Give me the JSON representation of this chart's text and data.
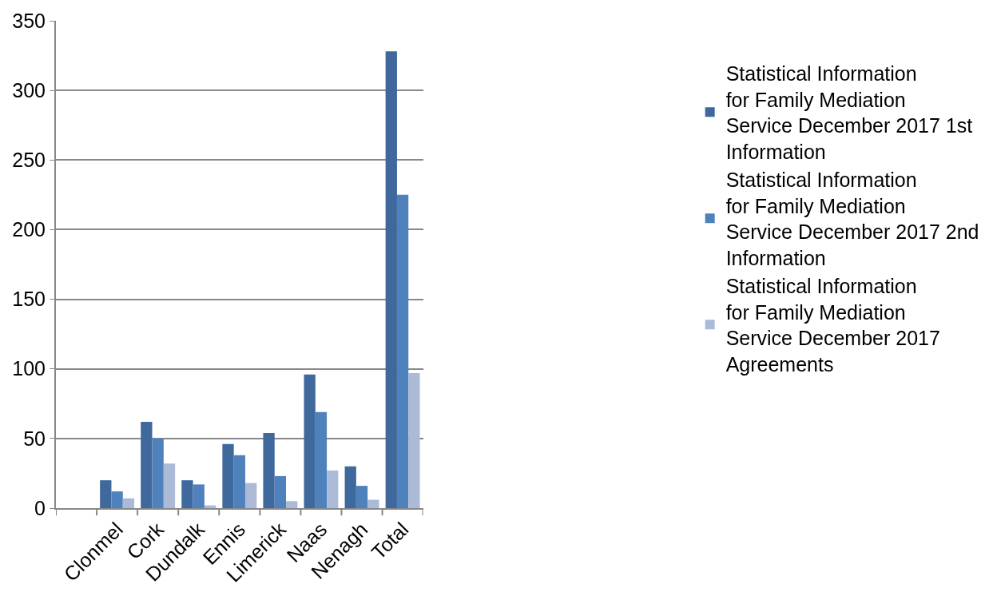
{
  "chart_data": {
    "type": "bar",
    "categories": [
      null,
      "Clonmel",
      "Cork",
      "Dundalk",
      "Ennis",
      "Limerick",
      "Naas",
      "Nenagh",
      "Total"
    ],
    "series": [
      {
        "name": "Statistical Information for Family Mediation Service December 2017 1st Information",
        "color": "#3f689c",
        "values": [
          null,
          20,
          62,
          20,
          46,
          54,
          96,
          30,
          328
        ]
      },
      {
        "name": "Statistical Information for Family Mediation Service December 2017 2nd Information",
        "color": "#4f81bd",
        "values": [
          null,
          12,
          50,
          17,
          38,
          23,
          69,
          16,
          225
        ]
      },
      {
        "name": "Statistical Information for Family Mediation Service December 2017 Agreements",
        "color": "#aabad7",
        "values": [
          null,
          7,
          32,
          2,
          18,
          5,
          27,
          6,
          97
        ]
      }
    ],
    "ylim": [
      0,
      350
    ],
    "yticks": [
      0,
      50,
      100,
      150,
      200,
      250,
      300,
      350
    ],
    "grid": "y",
    "legend": "right"
  }
}
